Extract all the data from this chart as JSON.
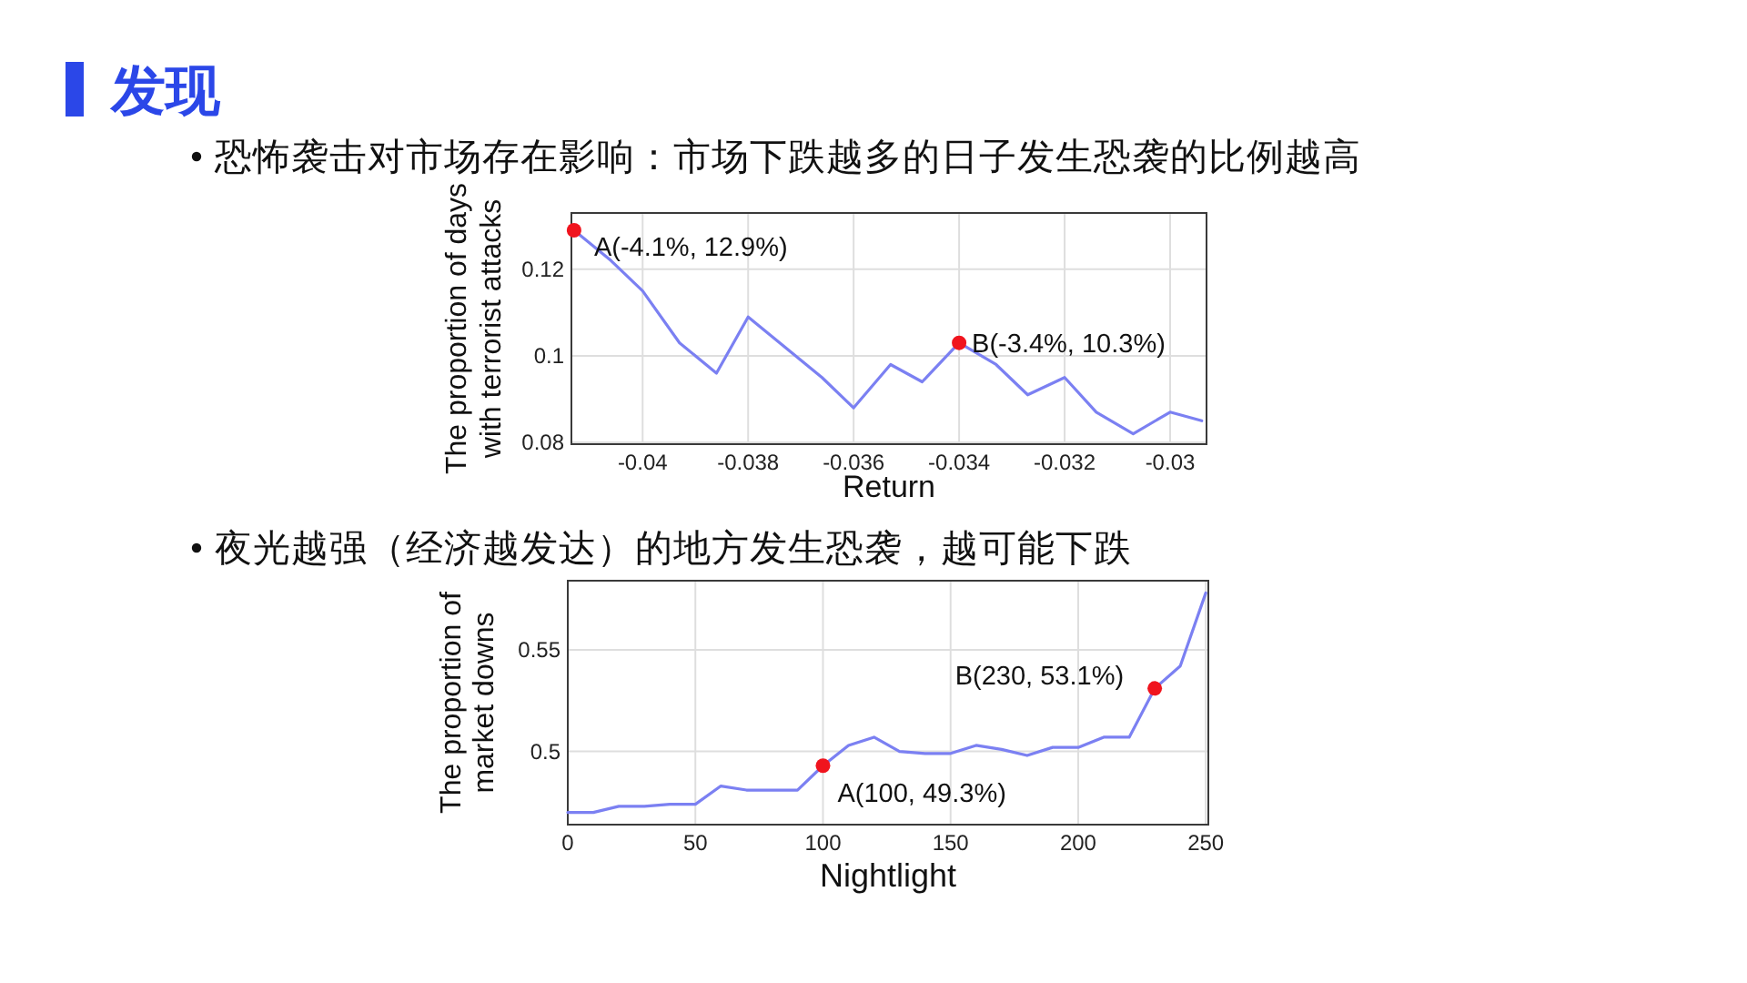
{
  "chart_data": [
    {
      "type": "line",
      "title": "发现",
      "subtitle": "恐怖袭击对市场存在影响：市场下跌越多的日子发生恐袭的比例越高",
      "xlabel": "Return",
      "ylabel": "The proportion of days with terrorist attacks",
      "grid": true,
      "xlim": [
        -0.04135,
        -0.02931
      ],
      "ylim": [
        0.0796,
        0.133
      ],
      "xticks": [
        -0.04,
        -0.038,
        -0.036,
        -0.034,
        -0.032,
        -0.03
      ],
      "yticks": [
        0.08,
        0.1,
        0.12
      ],
      "series": [
        {
          "color": "#7b80f2",
          "x": [
            -0.0413,
            -0.0406,
            -0.04,
            -0.0393,
            -0.0386,
            -0.038,
            -0.0373,
            -0.0366,
            -0.036,
            -0.0353,
            -0.0347,
            -0.034,
            -0.0333,
            -0.0327,
            -0.032,
            -0.0314,
            -0.0307,
            -0.03,
            -0.0294
          ],
          "values": [
            0.129,
            0.122,
            0.115,
            0.103,
            0.096,
            0.109,
            0.102,
            0.095,
            0.088,
            0.098,
            0.094,
            0.103,
            0.098,
            0.091,
            0.095,
            0.087,
            0.082,
            0.087,
            0.085
          ]
        },
        {
          "type": "scatter",
          "marker": "circle",
          "color": "#f0141e",
          "x": [
            -0.0413,
            -0.034
          ],
          "values": [
            0.129,
            0.103
          ]
        }
      ],
      "annotations": [
        {
          "text": "A(-4.1%, 12.9%)",
          "x": -0.0413,
          "y": 0.129
        },
        {
          "text": "B(-3.4%, 10.3%)",
          "x": -0.034,
          "y": 0.103
        }
      ]
    },
    {
      "type": "line",
      "subtitle": "夜光越强（经济越发达）的地方发生恐袭，越可能下跌",
      "xlabel": "Nightlight",
      "ylabel": "The proportion of market downs",
      "grid": true,
      "xlim": [
        0,
        251
      ],
      "ylim": [
        0.464,
        0.584
      ],
      "xticks": [
        0,
        50,
        100,
        150,
        200,
        250
      ],
      "yticks": [
        0.5,
        0.55
      ],
      "series": [
        {
          "color": "#7b80f2",
          "x": [
            0,
            10,
            20,
            30,
            40,
            50,
            60,
            70,
            80,
            90,
            100,
            110,
            120,
            130,
            140,
            150,
            160,
            170,
            180,
            190,
            200,
            210,
            220,
            230,
            240,
            250
          ],
          "values": [
            0.47,
            0.47,
            0.473,
            0.473,
            0.474,
            0.474,
            0.483,
            0.481,
            0.481,
            0.481,
            0.493,
            0.503,
            0.507,
            0.5,
            0.499,
            0.499,
            0.503,
            0.501,
            0.498,
            0.502,
            0.502,
            0.507,
            0.507,
            0.531,
            0.542,
            0.578
          ]
        },
        {
          "type": "scatter",
          "marker": "circle",
          "color": "#f0141e",
          "x": [
            100,
            230
          ],
          "values": [
            0.493,
            0.531
          ]
        }
      ],
      "annotations": [
        {
          "text": "A(100, 49.3%)",
          "x": 100,
          "y": 0.493
        },
        {
          "text": "B(230, 53.1%)",
          "x": 230,
          "y": 0.531
        }
      ]
    }
  ]
}
